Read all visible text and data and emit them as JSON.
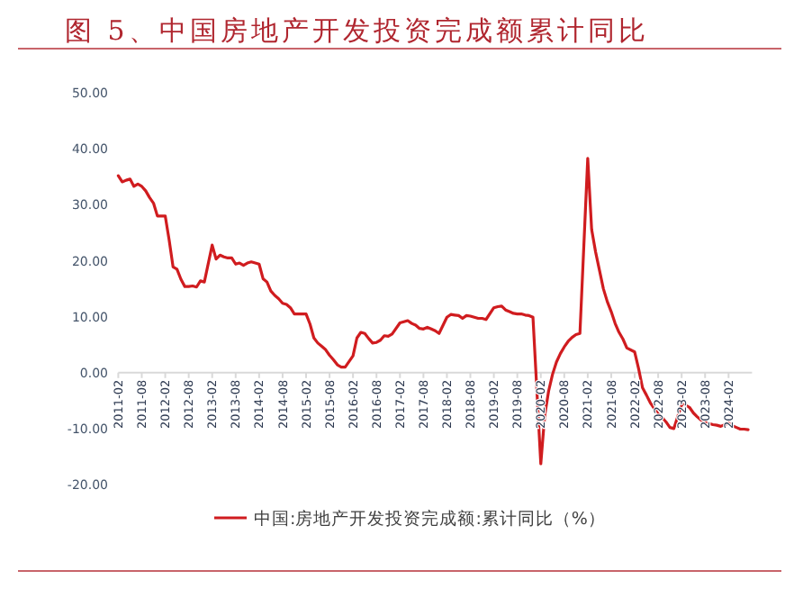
{
  "chart_data": {
    "type": "line",
    "title": "图 5、中国房地产开发投资完成额累计同比",
    "x": [
      "2011-02",
      "2011-03",
      "2011-04",
      "2011-05",
      "2011-06",
      "2011-07",
      "2011-08",
      "2011-09",
      "2011-10",
      "2011-11",
      "2011-12",
      "2012-02",
      "2012-03",
      "2012-04",
      "2012-05",
      "2012-06",
      "2012-07",
      "2012-08",
      "2012-09",
      "2012-10",
      "2012-11",
      "2012-12",
      "2013-02",
      "2013-03",
      "2013-04",
      "2013-05",
      "2013-06",
      "2013-07",
      "2013-08",
      "2013-09",
      "2013-10",
      "2013-11",
      "2013-12",
      "2014-02",
      "2014-03",
      "2014-04",
      "2014-05",
      "2014-06",
      "2014-07",
      "2014-08",
      "2014-09",
      "2014-10",
      "2014-11",
      "2014-12",
      "2015-02",
      "2015-03",
      "2015-04",
      "2015-05",
      "2015-06",
      "2015-07",
      "2015-08",
      "2015-09",
      "2015-10",
      "2015-11",
      "2015-12",
      "2016-02",
      "2016-03",
      "2016-04",
      "2016-05",
      "2016-06",
      "2016-07",
      "2016-08",
      "2016-09",
      "2016-10",
      "2016-11",
      "2016-12",
      "2017-02",
      "2017-03",
      "2017-04",
      "2017-05",
      "2017-06",
      "2017-07",
      "2017-08",
      "2017-09",
      "2017-10",
      "2017-11",
      "2017-12",
      "2018-02",
      "2018-03",
      "2018-04",
      "2018-05",
      "2018-06",
      "2018-07",
      "2018-08",
      "2018-09",
      "2018-10",
      "2018-11",
      "2018-12",
      "2019-02",
      "2019-03",
      "2019-04",
      "2019-05",
      "2019-06",
      "2019-07",
      "2019-08",
      "2019-09",
      "2019-10",
      "2019-11",
      "2019-12",
      "2020-02",
      "2020-03",
      "2020-04",
      "2020-05",
      "2020-06",
      "2020-07",
      "2020-08",
      "2020-09",
      "2020-10",
      "2020-11",
      "2020-12",
      "2021-02",
      "2021-03",
      "2021-04",
      "2021-05",
      "2021-06",
      "2021-07",
      "2021-08",
      "2021-09",
      "2021-10",
      "2021-11",
      "2021-12",
      "2022-02",
      "2022-03",
      "2022-04",
      "2022-05",
      "2022-06",
      "2022-07",
      "2022-08",
      "2022-09",
      "2022-10",
      "2022-11",
      "2022-12",
      "2023-02",
      "2023-03",
      "2023-04",
      "2023-05",
      "2023-06",
      "2023-07",
      "2023-08",
      "2023-09",
      "2023-10",
      "2023-11",
      "2023-12",
      "2024-02",
      "2024-03",
      "2024-04",
      "2024-05",
      "2024-06",
      "2024-07"
    ],
    "series": [
      {
        "name": "中国:房地产开发投资完成额:累计同比（%）",
        "color": "#d01c1f",
        "values": [
          35.2,
          34.1,
          34.4,
          34.6,
          33.3,
          33.7,
          33.3,
          32.5,
          31.3,
          30.3,
          28.0,
          28.0,
          23.7,
          18.9,
          18.5,
          16.7,
          15.4,
          15.4,
          15.5,
          15.3,
          16.4,
          16.2,
          22.8,
          20.3,
          21.0,
          20.7,
          20.5,
          20.5,
          19.4,
          19.6,
          19.2,
          19.6,
          19.8,
          19.4,
          16.8,
          16.2,
          14.6,
          13.8,
          13.2,
          12.4,
          12.2,
          11.6,
          10.5,
          10.5,
          10.5,
          8.7,
          6.2,
          5.3,
          4.7,
          4.1,
          3.1,
          2.3,
          1.4,
          1.0,
          1.0,
          3.0,
          6.2,
          7.2,
          7.0,
          6.1,
          5.3,
          5.4,
          5.8,
          6.6,
          6.5,
          6.9,
          8.9,
          9.1,
          9.3,
          8.8,
          8.5,
          7.9,
          7.8,
          8.1,
          7.8,
          7.5,
          7.0,
          9.9,
          10.4,
          10.3,
          10.2,
          9.7,
          10.2,
          10.1,
          9.9,
          9.7,
          9.7,
          9.5,
          11.6,
          11.8,
          11.9,
          11.2,
          10.9,
          10.6,
          10.5,
          10.5,
          10.3,
          10.2,
          9.9,
          -16.3,
          -7.7,
          -3.3,
          -0.3,
          1.9,
          3.4,
          4.6,
          5.6,
          6.3,
          6.8,
          7.0,
          38.3,
          25.6,
          21.6,
          18.3,
          15.0,
          12.7,
          10.9,
          8.8,
          7.2,
          6.0,
          4.4,
          3.7,
          0.7,
          -2.7,
          -4.0,
          -5.4,
          -6.4,
          -7.4,
          -8.0,
          -8.8,
          -9.8,
          -10.0,
          -5.7,
          -5.8,
          -6.2,
          -7.2,
          -7.9,
          -8.5,
          -8.8,
          -9.1,
          -9.3,
          -9.4,
          -9.6,
          -9.0,
          -9.5,
          -9.8,
          -10.1,
          -10.1,
          -10.2
        ]
      }
    ],
    "xlim": [
      "2011-02",
      "2024-08"
    ],
    "xticks": [
      "2011-02",
      "2011-08",
      "2012-02",
      "2012-08",
      "2013-02",
      "2013-08",
      "2014-02",
      "2014-08",
      "2015-02",
      "2015-08",
      "2016-02",
      "2016-08",
      "2017-02",
      "2017-08",
      "2018-02",
      "2018-08",
      "2019-02",
      "2019-08",
      "2020-02",
      "2020-08",
      "2021-02",
      "2021-08",
      "2022-02",
      "2022-08",
      "2023-02",
      "2023-08",
      "2024-02"
    ],
    "ylim": [
      -20,
      50
    ],
    "yticks": [
      {
        "value": -20,
        "label": "-20.00"
      },
      {
        "value": -10,
        "label": "-10.00"
      },
      {
        "value": 0,
        "label": "0.00"
      },
      {
        "value": 10,
        "label": "10.00"
      },
      {
        "value": 20,
        "label": "20.00"
      },
      {
        "value": 30,
        "label": "30.00"
      },
      {
        "value": 40,
        "label": "40.00"
      },
      {
        "value": 50,
        "label": "50.00"
      }
    ],
    "legend": "bottom"
  }
}
